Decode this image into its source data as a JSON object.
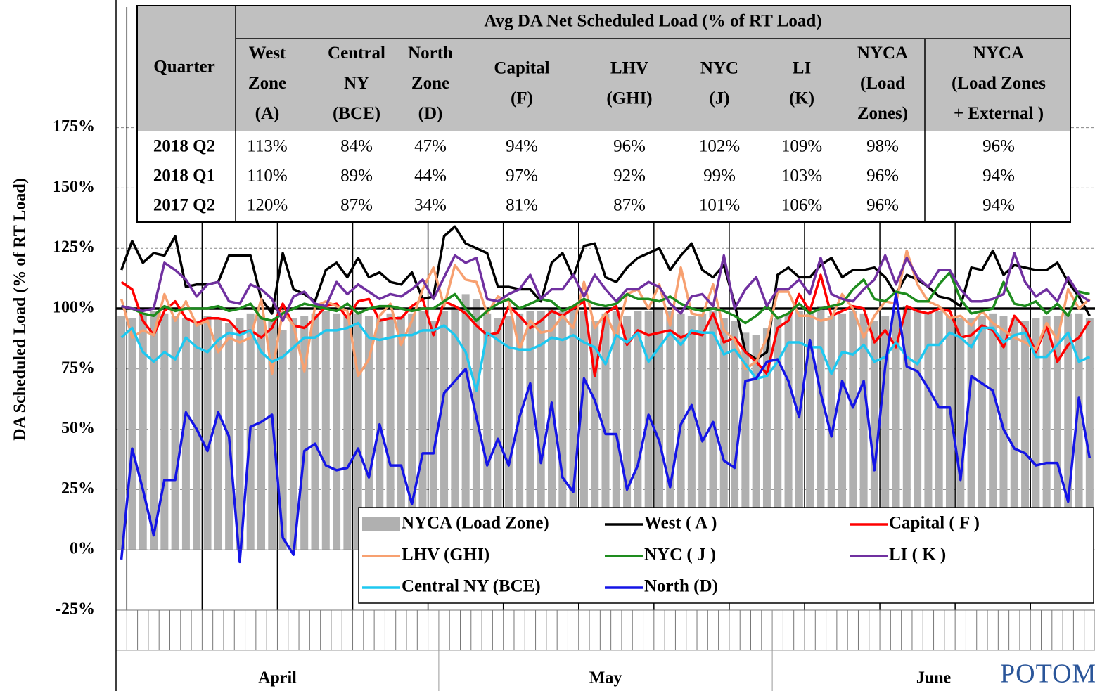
{
  "chart_data": {
    "type": "combo",
    "y_label": "DA Scheduled Load (% of RT Load)",
    "ylim": [
      -25,
      225
    ],
    "yticks": [
      {
        "value": -25,
        "label": "-25%"
      },
      {
        "value": 0,
        "label": "0%"
      },
      {
        "value": 25,
        "label": "25%"
      },
      {
        "value": 50,
        "label": "50%"
      },
      {
        "value": 75,
        "label": "75%"
      },
      {
        "value": 100,
        "label": "100%"
      },
      {
        "value": 125,
        "label": "125%"
      },
      {
        "value": 150,
        "label": "150%"
      },
      {
        "value": 175,
        "label": "175%"
      }
    ],
    "grid": true,
    "reference_line": 100,
    "categories": [
      "April",
      null,
      null,
      null,
      null,
      null,
      null,
      null,
      null,
      null,
      null,
      null,
      null,
      null,
      null,
      null,
      null,
      null,
      null,
      null,
      null,
      null,
      null,
      null,
      null,
      null,
      null,
      null,
      null,
      null,
      "May",
      null,
      null,
      null,
      null,
      null,
      null,
      null,
      null,
      null,
      null,
      null,
      null,
      null,
      null,
      null,
      null,
      null,
      null,
      null,
      null,
      null,
      null,
      null,
      null,
      null,
      null,
      null,
      null,
      null,
      null,
      "June",
      null,
      null,
      null,
      null,
      null,
      null,
      null,
      null,
      null,
      null,
      null,
      null,
      null,
      null,
      null,
      null,
      null,
      null,
      null,
      null,
      null,
      null,
      null,
      null,
      null,
      null,
      null,
      null,
      null
    ],
    "series": [
      {
        "name": "NYCA (Load Zone)",
        "type": "bar",
        "color": "#b0b0b0",
        "values": [
          97,
          96,
          98,
          99,
          98,
          97,
          96,
          95,
          97,
          96,
          94,
          96,
          98,
          97,
          95,
          91,
          96,
          97,
          98,
          99,
          98,
          97,
          98,
          97,
          96,
          98,
          97,
          98,
          99,
          95,
          99,
          101,
          106,
          104,
          98,
          96,
          97,
          98,
          99,
          99,
          100,
          99,
          101,
          99,
          95,
          98,
          99,
          97,
          99,
          99,
          100,
          99,
          98,
          97,
          98,
          99,
          96,
          95,
          90,
          89,
          92,
          96,
          98,
          99,
          98,
          101,
          97,
          98,
          99,
          98,
          95,
          97,
          99,
          101,
          100,
          98,
          99,
          97,
          96,
          96,
          97,
          98,
          97,
          96,
          95,
          96,
          97,
          97,
          98,
          98,
          96
        ]
      },
      {
        "name": "West ( A )",
        "type": "line",
        "color": "#000000",
        "values": [
          116,
          128,
          119,
          123,
          122,
          130,
          109,
          110,
          110,
          111,
          122,
          122,
          122,
          104,
          98,
          123,
          108,
          106,
          103,
          116,
          119,
          113,
          121,
          113,
          115,
          111,
          110,
          115,
          104,
          105,
          130,
          134,
          127,
          125,
          123,
          109,
          109,
          108,
          108,
          103,
          119,
          123,
          113,
          126,
          127,
          113,
          111,
          117,
          121,
          123,
          125,
          116,
          122,
          127,
          116,
          113,
          118,
          102,
          82,
          79,
          82,
          114,
          117,
          113,
          113,
          118,
          121,
          113,
          116,
          116,
          117,
          113,
          106,
          114,
          112,
          109,
          105,
          104,
          101,
          117,
          116,
          124,
          114,
          118,
          117,
          116,
          116,
          119,
          111,
          105,
          97
        ]
      },
      {
        "name": "Capital ( F )",
        "type": "line",
        "color": "#ff0000",
        "values": [
          111,
          108,
          95,
          89,
          99,
          103,
          96,
          94,
          96,
          96,
          95,
          90,
          91,
          88,
          92,
          102,
          93,
          92,
          96,
          101,
          102,
          96,
          103,
          104,
          95,
          96,
          96,
          101,
          104,
          89,
          103,
          101,
          98,
          93,
          89,
          90,
          101,
          97,
          92,
          95,
          99,
          97,
          100,
          103,
          72,
          98,
          101,
          85,
          91,
          89,
          90,
          91,
          88,
          90,
          89,
          98,
          86,
          88,
          82,
          78,
          73,
          92,
          95,
          106,
          99,
          114,
          97,
          99,
          101,
          100,
          86,
          91,
          84,
          101,
          99,
          98,
          100,
          99,
          88,
          89,
          93,
          91,
          84,
          97,
          92,
          82,
          93,
          78,
          85,
          88,
          95
        ]
      },
      {
        "name": "LHV (GHI)",
        "type": "line",
        "color": "#f7a070",
        "values": [
          104,
          88,
          91,
          89,
          106,
          95,
          103,
          93,
          95,
          82,
          88,
          86,
          88,
          104,
          73,
          99,
          93,
          74,
          101,
          103,
          101,
          99,
          72,
          79,
          97,
          102,
          85,
          95,
          108,
          117,
          101,
          118,
          112,
          111,
          98,
          105,
          103,
          83,
          95,
          90,
          91,
          97,
          92,
          111,
          92,
          98,
          88,
          106,
          108,
          100,
          110,
          93,
          117,
          98,
          97,
          110,
          91,
          87,
          75,
          78,
          88,
          107,
          107,
          97,
          97,
          95,
          96,
          106,
          100,
          88,
          97,
          103,
          102,
          124,
          110,
          103,
          101,
          96,
          97,
          93,
          99,
          94,
          91,
          88,
          86,
          83,
          94,
          87,
          108,
          100,
          104
        ]
      },
      {
        "name": "NYC ( J )",
        "type": "line",
        "color": "#1e8c1e",
        "values": [
          101,
          100,
          98,
          97,
          101,
          99,
          100,
          100,
          100,
          101,
          99,
          100,
          102,
          96,
          95,
          98,
          100,
          102,
          101,
          100,
          99,
          102,
          98,
          100,
          101,
          101,
          100,
          99,
          100,
          100,
          103,
          106,
          100,
          95,
          99,
          102,
          104,
          100,
          102,
          104,
          103,
          99,
          101,
          104,
          102,
          101,
          102,
          106,
          104,
          104,
          103,
          105,
          102,
          100,
          99,
          100,
          99,
          97,
          94,
          97,
          101,
          96,
          98,
          102,
          98,
          100,
          101,
          102,
          108,
          112,
          104,
          103,
          107,
          106,
          103,
          103,
          110,
          115,
          104,
          98,
          99,
          100,
          111,
          102,
          101,
          103,
          98,
          102,
          97,
          107,
          106
        ]
      },
      {
        "name": "LI ( K )",
        "type": "line",
        "color": "#7030a0",
        "values": [
          101,
          100,
          99,
          100,
          119,
          116,
          112,
          105,
          110,
          111,
          103,
          102,
          110,
          108,
          104,
          95,
          105,
          107,
          102,
          101,
          111,
          106,
          110,
          107,
          104,
          106,
          105,
          108,
          112,
          104,
          113,
          122,
          119,
          121,
          104,
          103,
          106,
          108,
          114,
          104,
          108,
          108,
          114,
          105,
          114,
          108,
          103,
          108,
          108,
          111,
          109,
          102,
          98,
          105,
          106,
          101,
          122,
          100,
          108,
          113,
          101,
          108,
          108,
          112,
          106,
          121,
          106,
          104,
          103,
          108,
          112,
          122,
          110,
          121,
          113,
          109,
          116,
          116,
          108,
          103,
          103,
          104,
          106,
          123,
          111,
          105,
          108,
          103,
          113,
          106,
          103
        ]
      },
      {
        "name": "Central NY (BCE)",
        "type": "line",
        "color": "#1ec8f0",
        "values": [
          88,
          92,
          82,
          78,
          82,
          79,
          88,
          84,
          82,
          87,
          90,
          89,
          91,
          82,
          78,
          80,
          84,
          88,
          88,
          91,
          91,
          92,
          94,
          88,
          87,
          88,
          89,
          89,
          91,
          91,
          93,
          89,
          82,
          66,
          90,
          87,
          84,
          83,
          83,
          85,
          88,
          87,
          89,
          86,
          84,
          77,
          89,
          86,
          90,
          78,
          84,
          90,
          85,
          91,
          90,
          90,
          81,
          83,
          77,
          71,
          72,
          78,
          86,
          86,
          84,
          84,
          73,
          82,
          81,
          85,
          78,
          80,
          86,
          80,
          77,
          85,
          85,
          90,
          88,
          84,
          92,
          92,
          86,
          89,
          90,
          80,
          80,
          85,
          90,
          78,
          80
        ]
      },
      {
        "name": "North (D)",
        "type": "line",
        "color": "#1414e6",
        "values": [
          -4,
          42,
          25,
          6,
          29,
          29,
          57,
          50,
          41,
          57,
          47,
          -5,
          51,
          53,
          56,
          5,
          -2,
          41,
          44,
          35,
          33,
          34,
          42,
          30,
          52,
          35,
          35,
          19,
          40,
          40,
          65,
          70,
          75,
          55,
          35,
          46,
          35,
          55,
          69,
          36,
          61,
          30,
          24,
          71,
          62,
          48,
          48,
          25,
          35,
          56,
          45,
          26,
          52,
          60,
          45,
          53,
          37,
          34,
          70,
          71,
          78,
          79,
          70,
          55,
          87,
          65,
          47,
          70,
          59,
          70,
          33,
          76,
          106,
          76,
          74,
          67,
          59,
          59,
          29,
          72,
          69,
          66,
          50,
          42,
          40,
          35,
          36,
          36,
          20,
          63,
          38
        ]
      }
    ],
    "table": {
      "title": "Avg DA Net Scheduled Load (% of RT Load)",
      "columns": [
        [
          "Quarter"
        ],
        [
          "West",
          "Zone",
          "(A)"
        ],
        [
          "Central",
          "NY",
          "(BCE)"
        ],
        [
          "North",
          "Zone",
          "(D)"
        ],
        [
          "Capital",
          "(F)"
        ],
        [
          "LHV",
          "(GHI)"
        ],
        [
          "NYC",
          "(J)"
        ],
        [
          "LI",
          "(K)"
        ],
        [
          "NYCA",
          "(Load",
          "Zones)"
        ],
        [
          "NYCA",
          "(Load Zones",
          "+ External )"
        ]
      ],
      "rows": [
        [
          "2018 Q2",
          "113%",
          "84%",
          "47%",
          "94%",
          "96%",
          "102%",
          "109%",
          "98%",
          "96%"
        ],
        [
          "2018 Q1",
          "110%",
          "89%",
          "44%",
          "97%",
          "92%",
          "99%",
          "103%",
          "96%",
          "94%"
        ],
        [
          "2017 Q2",
          "120%",
          "87%",
          "34%",
          "81%",
          "87%",
          "101%",
          "106%",
          "96%",
          "94%"
        ]
      ]
    },
    "logo_text": "POTOMAC"
  }
}
